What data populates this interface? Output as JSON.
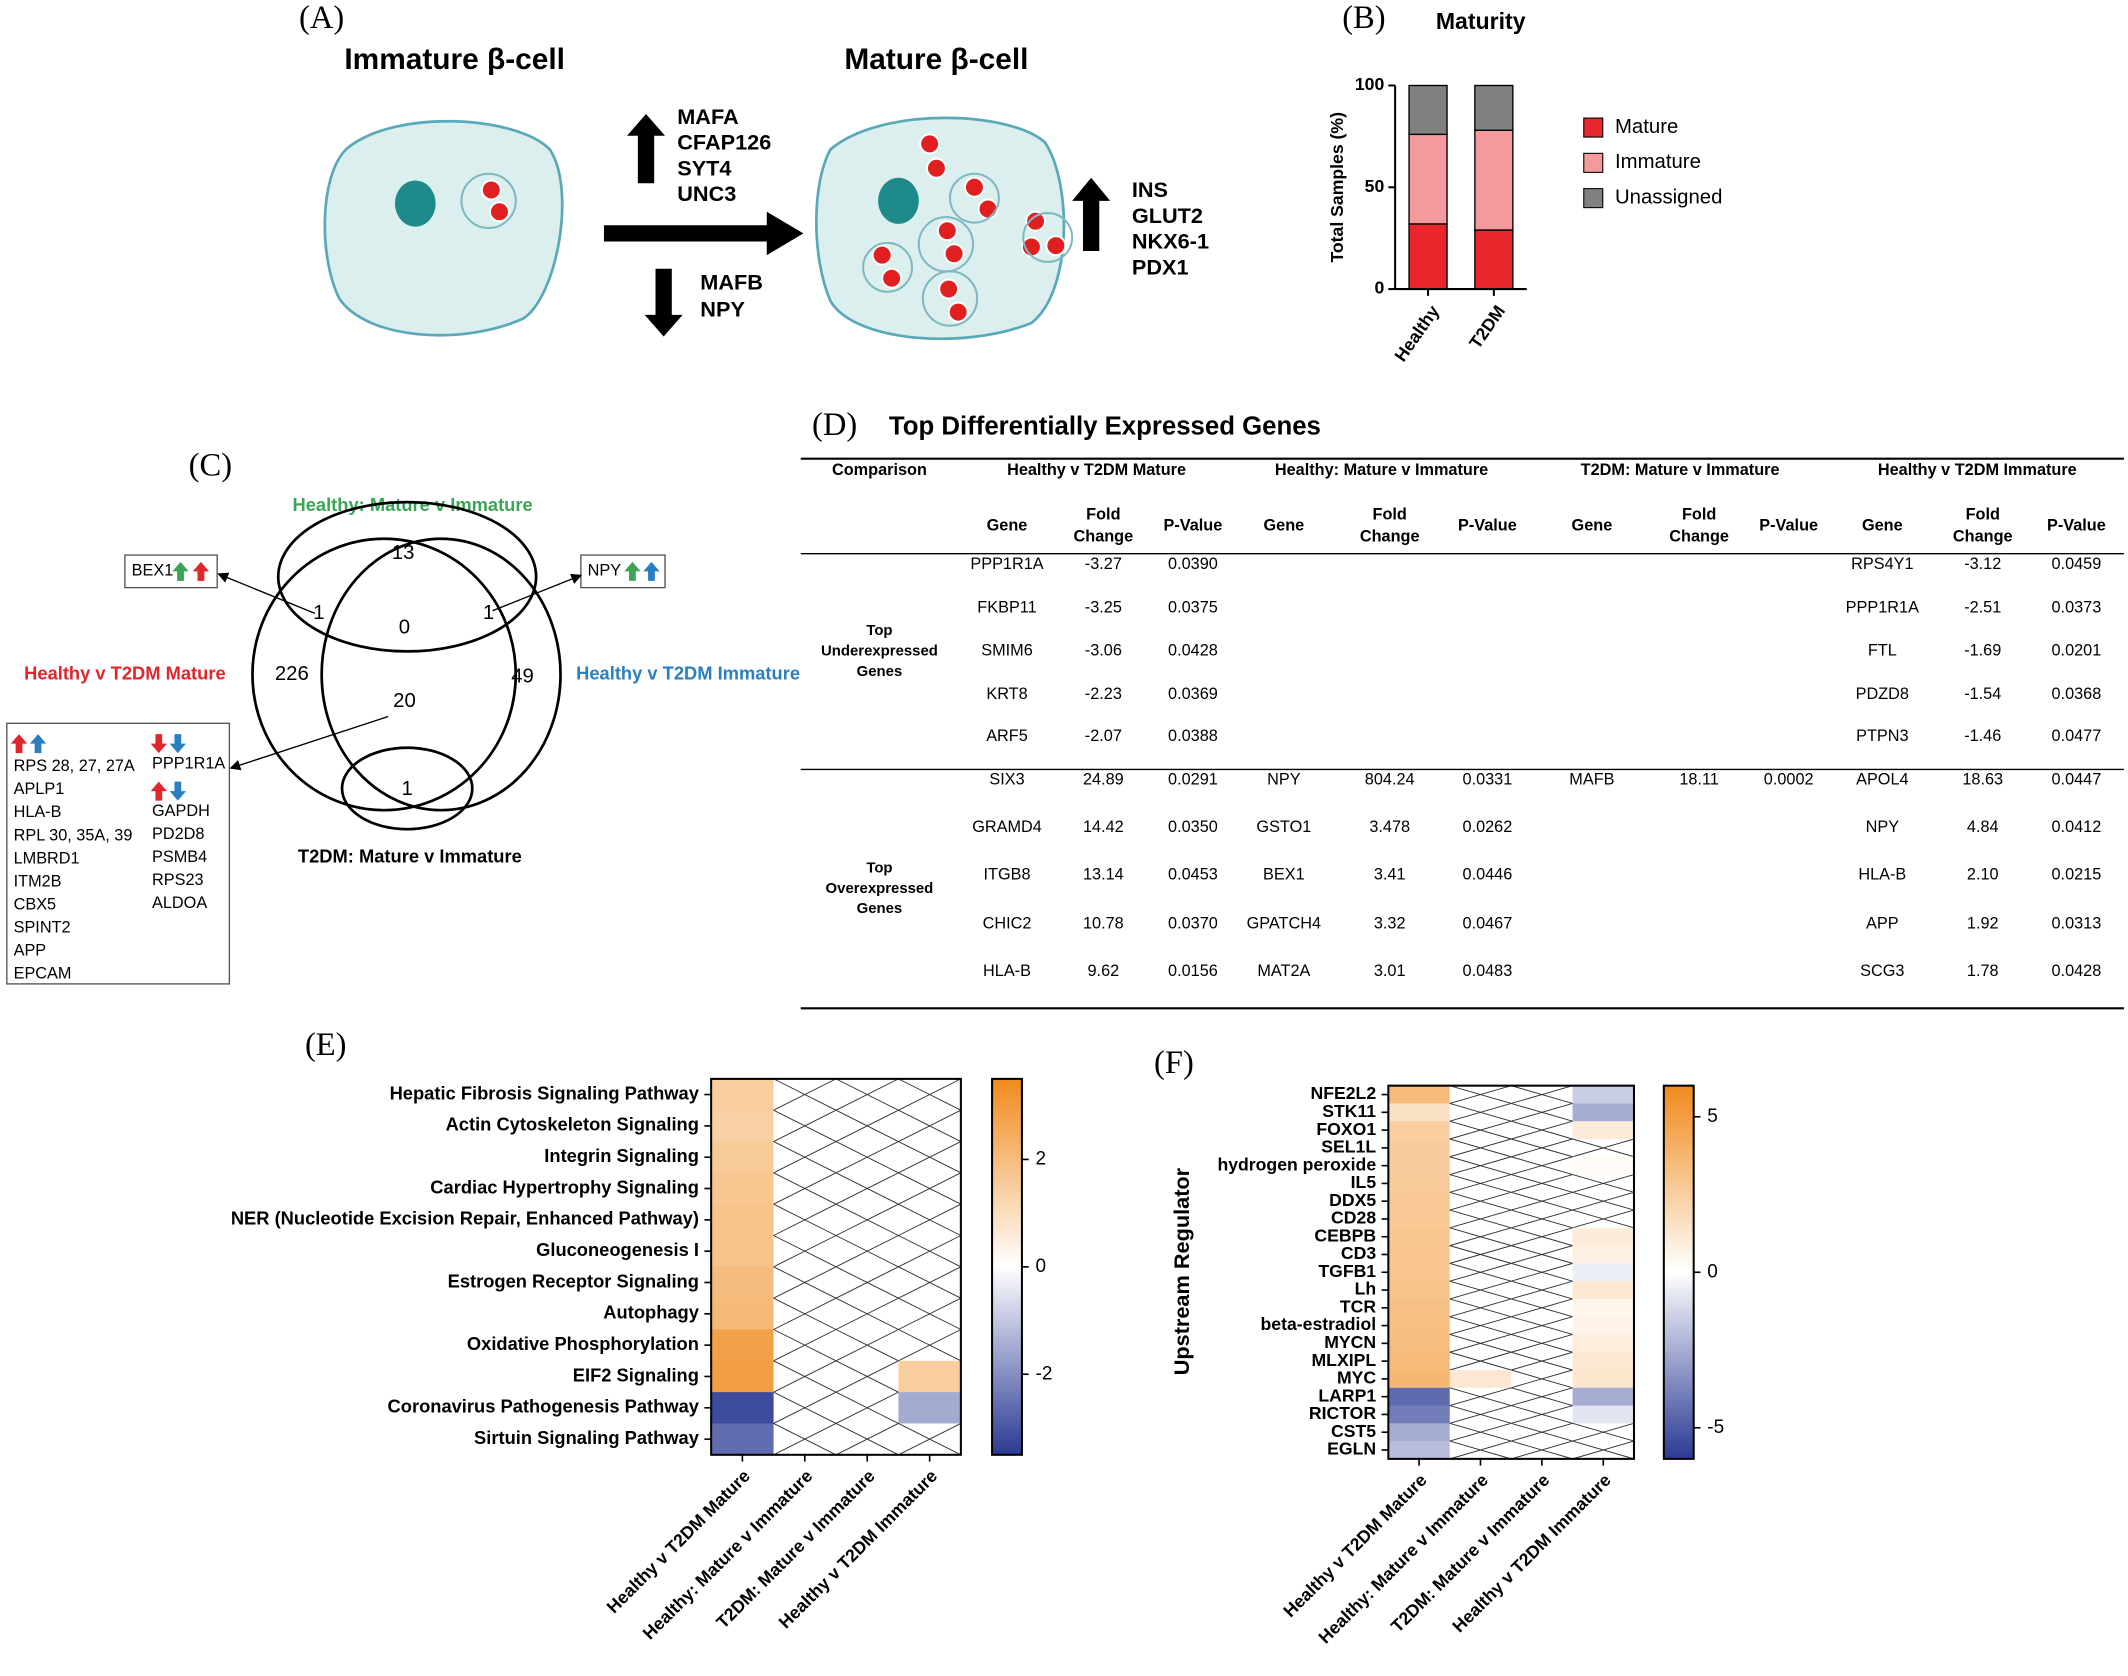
{
  "panel_labels": [
    "(A)",
    "(B)",
    "(C)",
    "(D)",
    "(E)",
    "(F)"
  ],
  "diagram": {
    "immature_title": "Immature β-cell",
    "mature_title": "Mature β-cell",
    "up_genes": [
      "MAFA",
      "CFAP126",
      "SYT4",
      "UNC3"
    ],
    "down_genes": [
      "MAFB",
      "NPY"
    ],
    "mature_up_genes": [
      "INS",
      "GLUT2",
      "NKX6-1",
      "PDX1"
    ]
  },
  "venn": {
    "sets": [
      "Healthy: Mature v Immature",
      "Healthy v T2DM Mature",
      "Healthy v T2DM Immature",
      "T2DM: Mature v Immature"
    ],
    "counts": [
      13,
      1,
      0,
      1,
      226,
      49,
      20,
      1
    ],
    "left_box": "BEX1",
    "right_box": "NPY",
    "shared_up_up": [
      "RPS 28, 27, 27A",
      "APLP1",
      "HLA-B",
      "RPL 30, 35A, 39",
      "LMBRD1",
      "ITM2B",
      "CBX5",
      "SPINT2",
      "APP",
      "EPCAM"
    ],
    "shared_down_down": [
      "PPP1R1A"
    ],
    "shared_up_down": [
      "GAPDH",
      "PD2D8",
      "PSMB4",
      "RPS23",
      "ALDOA"
    ]
  },
  "table": {
    "title": "Top Differentially Expressed Genes",
    "comparison_header": "Comparison",
    "groups": [
      "Healthy v T2DM Mature",
      "Healthy: Mature v Immature",
      "T2DM: Mature v Immature",
      "Healthy v T2DM Immature"
    ],
    "subheaders": [
      "Gene",
      "Fold Change",
      "P-Value"
    ],
    "sections": [
      {
        "label": "Top Underexpressed Genes",
        "rows": [
          [
            "PPP1R1A",
            "-3.27",
            "0.0390",
            null,
            null,
            null,
            null,
            null,
            null,
            "RPS4Y1",
            "-3.12",
            "0.0459"
          ],
          [
            "FKBP11",
            "-3.25",
            "0.0375",
            null,
            null,
            null,
            null,
            null,
            null,
            "PPP1R1A",
            "-2.51",
            "0.0373"
          ],
          [
            "SMIM6",
            "-3.06",
            "0.0428",
            null,
            null,
            null,
            null,
            null,
            null,
            "FTL",
            "-1.69",
            "0.0201"
          ],
          [
            "KRT8",
            "-2.23",
            "0.0369",
            null,
            null,
            null,
            null,
            null,
            null,
            "PDZD8",
            "-1.54",
            "0.0368"
          ],
          [
            "ARF5",
            "-2.07",
            "0.0388",
            null,
            null,
            null,
            null,
            null,
            null,
            "PTPN3",
            "-1.46",
            "0.0477"
          ]
        ]
      },
      {
        "label": "Top Overexpressed Genes",
        "rows": [
          [
            "SIX3",
            "24.89",
            "0.0291",
            "NPY",
            "804.24",
            "0.0331",
            "MAFB",
            "18.11",
            "0.0002",
            "APOL4",
            "18.63",
            "0.0447"
          ],
          [
            "GRAMD4",
            "14.42",
            "0.0350",
            "GSTO1",
            "3.478",
            "0.0262",
            null,
            null,
            null,
            "NPY",
            "4.84",
            "0.0412"
          ],
          [
            "ITGB8",
            "13.14",
            "0.0453",
            "BEX1",
            "3.41",
            "0.0446",
            null,
            null,
            null,
            "HLA-B",
            "2.10",
            "0.0215"
          ],
          [
            "CHIC2",
            "10.78",
            "0.0370",
            "GPATCH4",
            "3.32",
            "0.0467",
            null,
            null,
            null,
            "APP",
            "1.92",
            "0.0313"
          ],
          [
            "HLA-B",
            "9.62",
            "0.0156",
            "MAT2A",
            "3.01",
            "0.0483",
            null,
            null,
            null,
            "SCG3",
            "1.78",
            "0.0428"
          ]
        ]
      }
    ]
  },
  "chart_data": [
    {
      "type": "bar",
      "stacked": true,
      "title": "Maturity",
      "y_label": "Total Samples (%)",
      "categories": [
        "Healthy",
        "T2DM"
      ],
      "series": [
        {
          "name": "Mature",
          "color": "#e8262b",
          "values": [
            32,
            29
          ]
        },
        {
          "name": "Immature",
          "color": "#f29a9c",
          "values": [
            44,
            49
          ]
        },
        {
          "name": "Unassigned",
          "color": "#808080",
          "values": [
            24,
            22
          ]
        }
      ],
      "ylim": [
        0,
        100
      ],
      "yticks": [
        0,
        50,
        100
      ],
      "legend": "right"
    },
    {
      "type": "heatmap",
      "rows": [
        "Hepatic Fibrosis Signaling Pathway",
        "Actin Cytoskeleton Signaling",
        "Integrin Signaling",
        "Cardiac Hypertrophy Signaling",
        "NER (Nucleotide Excision Repair, Enhanced Pathway)",
        "Gluconeogenesis I",
        "Estrogen Receptor Signaling",
        "Autophagy",
        "Oxidative Phosphorylation",
        "EIF2 Signaling",
        "Coronavirus Pathogenesis Pathway",
        "Sirtuin Signaling Pathway"
      ],
      "columns": [
        "Healthy v T2DM Mature",
        "Healthy: Mature v Immature",
        "T2DM: Mature v Immature",
        "Healthy v T2DM Immature"
      ],
      "values": [
        [
          1.5,
          null,
          null,
          null
        ],
        [
          1.4,
          null,
          null,
          null
        ],
        [
          1.6,
          null,
          null,
          null
        ],
        [
          1.7,
          null,
          null,
          null
        ],
        [
          1.8,
          null,
          null,
          null
        ],
        [
          1.8,
          null,
          null,
          null
        ],
        [
          2.0,
          null,
          null,
          null
        ],
        [
          2.1,
          null,
          null,
          null
        ],
        [
          2.8,
          null,
          null,
          null
        ],
        [
          2.9,
          null,
          null,
          1.5
        ],
        [
          -3.2,
          null,
          null,
          -1.5
        ],
        [
          -2.6,
          null,
          null,
          null
        ]
      ],
      "zlim": [
        -3.5,
        3.5
      ],
      "zticks": [
        -2,
        0,
        2
      ],
      "colors": [
        "#2b3a94",
        "#ffffff",
        "#f08a1c"
      ]
    },
    {
      "type": "heatmap",
      "y_label": "Upstream Regulator",
      "rows": [
        "NFE2L2",
        "STK11",
        "FOXO1",
        "SEL1L",
        "hydrogen peroxide",
        "IL5",
        "DDX5",
        "CD28",
        "CEBPB",
        "CD3",
        "TGFB1",
        "Lh",
        "TCR",
        "beta-estradiol",
        "MYCN",
        "MLXIPL",
        "MYC",
        "LARP1",
        "RICTOR",
        "CST5",
        "EGLN"
      ],
      "columns": [
        "Healthy v T2DM Mature",
        "Healthy: Mature v Immature",
        "T2DM: Mature v Immature",
        "Healthy v T2DM Immature"
      ],
      "values": [
        [
          3.5,
          null,
          null,
          -1.5
        ],
        [
          1.5,
          null,
          null,
          -2.5
        ],
        [
          2.5,
          null,
          null,
          1.0
        ],
        [
          2.6,
          null,
          null,
          null
        ],
        [
          2.6,
          null,
          null,
          0.2
        ],
        [
          2.7,
          null,
          null,
          null
        ],
        [
          2.8,
          null,
          null,
          null
        ],
        [
          2.8,
          null,
          null,
          null
        ],
        [
          2.9,
          null,
          null,
          1.0
        ],
        [
          3.0,
          null,
          null,
          0.8
        ],
        [
          3.0,
          null,
          null,
          -0.5
        ],
        [
          3.1,
          null,
          null,
          1.2
        ],
        [
          3.2,
          null,
          null,
          0.5
        ],
        [
          3.3,
          null,
          null,
          0.6
        ],
        [
          3.4,
          null,
          null,
          0.9
        ],
        [
          3.5,
          null,
          null,
          1.2
        ],
        [
          3.7,
          1.2,
          null,
          1.3
        ],
        [
          -4.5,
          null,
          null,
          -2.5
        ],
        [
          -4.0,
          null,
          null,
          -0.8
        ],
        [
          -2.5,
          null,
          null,
          null
        ],
        [
          -2.0,
          null,
          null,
          null
        ]
      ],
      "zlim": [
        -6,
        6
      ],
      "zticks": [
        -5,
        0,
        5
      ],
      "colors": [
        "#2b3a94",
        "#ffffff",
        "#f08a1c"
      ]
    }
  ]
}
